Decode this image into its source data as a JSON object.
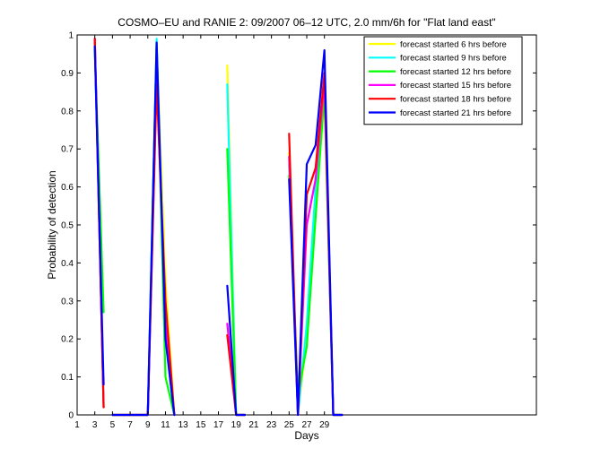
{
  "chart_data": {
    "type": "line",
    "title": "COSMO–EU and RANIE 2: 09/2007 06–12 UTC, 2.0 mm/6h for \"Flat land east\"",
    "xlabel": "Days",
    "ylabel": "Probability of detection",
    "xlim": [
      1,
      53
    ],
    "ylim": [
      0,
      1
    ],
    "xticks": [
      1,
      3,
      5,
      7,
      9,
      11,
      13,
      15,
      17,
      19,
      21,
      23,
      25,
      27,
      29
    ],
    "yticks": [
      0,
      0.1,
      0.2,
      0.3,
      0.4,
      0.5,
      0.6,
      0.7,
      0.8,
      0.9,
      1
    ],
    "ytick_labels": [
      "0",
      "0.1",
      "0.2",
      "0.3",
      "0.4",
      "0.5",
      "0.6",
      "0.7",
      "0.8",
      "0.9",
      "1"
    ],
    "grid": false,
    "legend_position": "top-right",
    "series": [
      {
        "name": "forecast started 6 hrs before",
        "color": "#ffff00",
        "segments": [
          [
            [
              3,
              0.98
            ],
            [
              4,
              0.02
            ]
          ],
          [
            [
              5,
              0
            ],
            [
              6,
              0
            ],
            [
              7,
              0
            ],
            [
              8,
              0
            ],
            [
              9,
              0
            ],
            [
              10,
              0.97
            ],
            [
              11,
              0.35
            ],
            [
              12,
              0
            ]
          ],
          [
            [
              18,
              0.92
            ],
            [
              19,
              0
            ],
            [
              20,
              0
            ]
          ],
          [
            [
              25,
              0.69
            ],
            [
              26,
              0
            ],
            [
              27,
              0.21
            ],
            [
              28,
              0.55
            ],
            [
              29,
              0.83
            ],
            [
              30,
              0
            ],
            [
              31,
              0
            ]
          ]
        ]
      },
      {
        "name": "forecast started 9 hrs before",
        "color": "#00ffff",
        "segments": [
          [
            [
              3,
              0.97
            ],
            [
              4,
              0.03
            ]
          ],
          [
            [
              5,
              0
            ],
            [
              6,
              0
            ],
            [
              7,
              0
            ],
            [
              8,
              0
            ],
            [
              9,
              0
            ],
            [
              10,
              0.99
            ],
            [
              11,
              0.2
            ],
            [
              12,
              0
            ]
          ],
          [
            [
              18,
              0.87
            ],
            [
              19,
              0
            ],
            [
              20,
              0
            ]
          ],
          [
            [
              25,
              0.66
            ],
            [
              26,
              0
            ],
            [
              27,
              0.24
            ],
            [
              28,
              0.6
            ],
            [
              29,
              0.86
            ],
            [
              30,
              0
            ],
            [
              31,
              0
            ]
          ]
        ]
      },
      {
        "name": "forecast started 12 hrs before",
        "color": "#00ff00",
        "segments": [
          [
            [
              3,
              0.96
            ],
            [
              4,
              0.27
            ]
          ],
          [
            [
              5,
              0
            ],
            [
              6,
              0
            ],
            [
              7,
              0
            ],
            [
              8,
              0
            ],
            [
              9,
              0
            ],
            [
              10,
              0.98
            ],
            [
              11,
              0.1
            ],
            [
              12,
              0
            ]
          ],
          [
            [
              18,
              0.7
            ],
            [
              19,
              0
            ],
            [
              20,
              0
            ]
          ],
          [
            [
              25,
              0.63
            ],
            [
              26,
              0.05
            ],
            [
              27,
              0.18
            ],
            [
              28,
              0.52
            ],
            [
              29,
              0.85
            ],
            [
              30,
              0
            ],
            [
              31,
              0
            ]
          ]
        ]
      },
      {
        "name": "forecast started 15 hrs before",
        "color": "#ff00ff",
        "segments": [
          [
            [
              3,
              0.99
            ],
            [
              4,
              0.02
            ]
          ],
          [
            [
              5,
              0
            ],
            [
              6,
              0
            ],
            [
              7,
              0
            ],
            [
              8,
              0
            ],
            [
              9,
              0
            ],
            [
              10,
              0.9
            ],
            [
              11,
              0.25
            ],
            [
              12,
              0
            ]
          ],
          [
            [
              18,
              0.24
            ],
            [
              19,
              0
            ],
            [
              20,
              0
            ]
          ],
          [
            [
              25,
              0.68
            ],
            [
              26,
              0
            ],
            [
              27,
              0.5
            ],
            [
              28,
              0.62
            ],
            [
              29,
              0.88
            ],
            [
              30,
              0
            ],
            [
              31,
              0
            ]
          ]
        ]
      },
      {
        "name": "forecast started 18 hrs before",
        "color": "#ff0000",
        "segments": [
          [
            [
              3,
              0.99
            ],
            [
              4,
              0.02
            ]
          ],
          [
            [
              5,
              0
            ],
            [
              6,
              0
            ],
            [
              7,
              0
            ],
            [
              8,
              0
            ],
            [
              9,
              0
            ],
            [
              10,
              0.87
            ],
            [
              11,
              0.3
            ],
            [
              12,
              0
            ]
          ],
          [
            [
              18,
              0.21
            ],
            [
              19,
              0
            ],
            [
              20,
              0
            ]
          ],
          [
            [
              25,
              0.74
            ],
            [
              26,
              0
            ],
            [
              27,
              0.58
            ],
            [
              28,
              0.65
            ],
            [
              29,
              0.9
            ],
            [
              30,
              0
            ],
            [
              31,
              0
            ]
          ]
        ]
      },
      {
        "name": "forecast started 21 hrs before",
        "color": "#0000ff",
        "segments": [
          [
            [
              3,
              0.97
            ],
            [
              4,
              0.08
            ]
          ],
          [
            [
              5,
              0
            ],
            [
              6,
              0
            ],
            [
              7,
              0
            ],
            [
              8,
              0
            ],
            [
              9,
              0
            ],
            [
              10,
              0.98
            ],
            [
              11,
              0.2
            ],
            [
              12,
              0
            ]
          ],
          [
            [
              18,
              0.34
            ],
            [
              19,
              0
            ],
            [
              20,
              0
            ]
          ],
          [
            [
              25,
              0.62
            ],
            [
              26,
              0
            ],
            [
              27,
              0.66
            ],
            [
              28,
              0.71
            ],
            [
              29,
              0.96
            ],
            [
              30,
              0
            ],
            [
              31,
              0
            ]
          ]
        ]
      }
    ]
  }
}
